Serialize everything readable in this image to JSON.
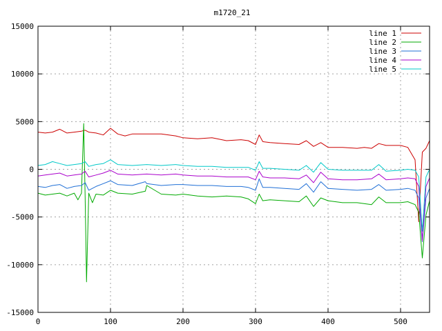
{
  "chart_data": {
    "type": "line",
    "title": "m1720_21",
    "xlabel": "",
    "ylabel": "",
    "xlim": [
      0,
      540
    ],
    "ylim": [
      -15000,
      15000
    ],
    "x_ticks": [
      0,
      100,
      200,
      300,
      400,
      500
    ],
    "y_ticks": [
      -15000,
      -10000,
      -5000,
      0,
      5000,
      10000,
      15000
    ],
    "grid": true,
    "legend_position": "top-right",
    "series": [
      {
        "name": "line 1",
        "color": "#cc0000",
        "x": [
          0,
          10,
          20,
          30,
          40,
          50,
          60,
          65,
          70,
          80,
          90,
          100,
          110,
          120,
          130,
          150,
          170,
          190,
          200,
          220,
          240,
          260,
          280,
          290,
          300,
          305,
          310,
          320,
          340,
          360,
          370,
          380,
          390,
          400,
          420,
          440,
          450,
          460,
          470,
          480,
          500,
          510,
          520,
          525,
          530,
          535,
          540
        ],
        "y": [
          3900,
          3800,
          3900,
          4200,
          3800,
          3900,
          4000,
          4100,
          3900,
          3800,
          3600,
          4300,
          3700,
          3500,
          3700,
          3700,
          3700,
          3500,
          3300,
          3200,
          3300,
          3000,
          3100,
          3000,
          2600,
          3600,
          2900,
          2800,
          2700,
          2600,
          3000,
          2400,
          2800,
          2300,
          2300,
          2200,
          2300,
          2200,
          2700,
          2500,
          2500,
          2300,
          1000,
          -5500,
          1800,
          2200,
          3000
        ]
      },
      {
        "name": "line 2",
        "color": "#00aa00",
        "x": [
          0,
          10,
          20,
          30,
          40,
          50,
          55,
          60,
          63,
          65,
          67,
          70,
          75,
          80,
          90,
          100,
          110,
          130,
          148,
          150,
          170,
          190,
          200,
          220,
          240,
          260,
          280,
          290,
          300,
          305,
          310,
          320,
          340,
          360,
          370,
          380,
          390,
          400,
          420,
          440,
          460,
          470,
          480,
          500,
          510,
          520,
          525,
          530,
          535,
          540
        ],
        "y": [
          -2500,
          -2700,
          -2600,
          -2500,
          -2800,
          -2500,
          -3200,
          -2500,
          4800,
          -3000,
          -11800,
          -2500,
          -3500,
          -2600,
          -2700,
          -2200,
          -2500,
          -2600,
          -2300,
          -1700,
          -2600,
          -2700,
          -2600,
          -2800,
          -2900,
          -2800,
          -2900,
          -3100,
          -3600,
          -2600,
          -3300,
          -3200,
          -3300,
          -3400,
          -2800,
          -3900,
          -3000,
          -3300,
          -3500,
          -3500,
          -3700,
          -2900,
          -3500,
          -3500,
          -3400,
          -3700,
          -4500,
          -9300,
          -4800,
          -3300
        ]
      },
      {
        "name": "line 3",
        "color": "#1f6fd6",
        "x": [
          0,
          10,
          20,
          30,
          40,
          50,
          60,
          65,
          70,
          80,
          90,
          100,
          110,
          130,
          148,
          150,
          170,
          190,
          200,
          220,
          240,
          260,
          280,
          290,
          300,
          305,
          310,
          320,
          340,
          360,
          370,
          380,
          390,
          400,
          420,
          440,
          460,
          470,
          480,
          500,
          510,
          520,
          525,
          530,
          535,
          540
        ],
        "y": [
          -1800,
          -1900,
          -1700,
          -1600,
          -2000,
          -1800,
          -1700,
          -1400,
          -2200,
          -1800,
          -1500,
          -1200,
          -1600,
          -1700,
          -1300,
          -1500,
          -1700,
          -1600,
          -1600,
          -1700,
          -1700,
          -1800,
          -1800,
          -1900,
          -2200,
          -1000,
          -1900,
          -1900,
          -2000,
          -2100,
          -1500,
          -2400,
          -1300,
          -2000,
          -2100,
          -2200,
          -2100,
          -1600,
          -2200,
          -2100,
          -2000,
          -2200,
          -3000,
          -7600,
          -3000,
          -2000
        ]
      },
      {
        "name": "line 4",
        "color": "#aa00cc",
        "x": [
          0,
          10,
          20,
          30,
          40,
          50,
          60,
          65,
          70,
          80,
          90,
          100,
          110,
          130,
          150,
          170,
          190,
          200,
          220,
          240,
          260,
          280,
          290,
          300,
          305,
          310,
          320,
          340,
          360,
          370,
          380,
          390,
          400,
          420,
          440,
          460,
          470,
          480,
          500,
          510,
          520,
          525,
          530,
          535,
          540
        ],
        "y": [
          -700,
          -600,
          -500,
          -400,
          -700,
          -600,
          -500,
          -200,
          -800,
          -600,
          -400,
          -100,
          -500,
          -600,
          -500,
          -600,
          -500,
          -600,
          -700,
          -700,
          -800,
          -800,
          -800,
          -1100,
          -200,
          -800,
          -900,
          -900,
          -1000,
          -600,
          -1400,
          -300,
          -1000,
          -1100,
          -1100,
          -1000,
          -500,
          -1100,
          -1000,
          -900,
          -1000,
          -1800,
          -7500,
          -1800,
          -900
        ]
      },
      {
        "name": "line 5",
        "color": "#00c8c8",
        "x": [
          0,
          10,
          20,
          30,
          40,
          50,
          60,
          65,
          70,
          80,
          90,
          100,
          110,
          130,
          150,
          170,
          190,
          200,
          220,
          240,
          260,
          280,
          290,
          300,
          305,
          310,
          320,
          340,
          360,
          370,
          380,
          390,
          400,
          420,
          440,
          460,
          470,
          480,
          500,
          510,
          520,
          525,
          530,
          535,
          540
        ],
        "y": [
          400,
          500,
          800,
          600,
          400,
          500,
          600,
          800,
          300,
          500,
          600,
          1000,
          500,
          400,
          500,
          400,
          500,
          400,
          300,
          300,
          200,
          200,
          200,
          -100,
          800,
          100,
          100,
          0,
          -100,
          400,
          -300,
          700,
          0,
          -100,
          -100,
          -100,
          500,
          -200,
          -100,
          0,
          -100,
          -800,
          -6500,
          -800,
          0
        ]
      }
    ]
  }
}
